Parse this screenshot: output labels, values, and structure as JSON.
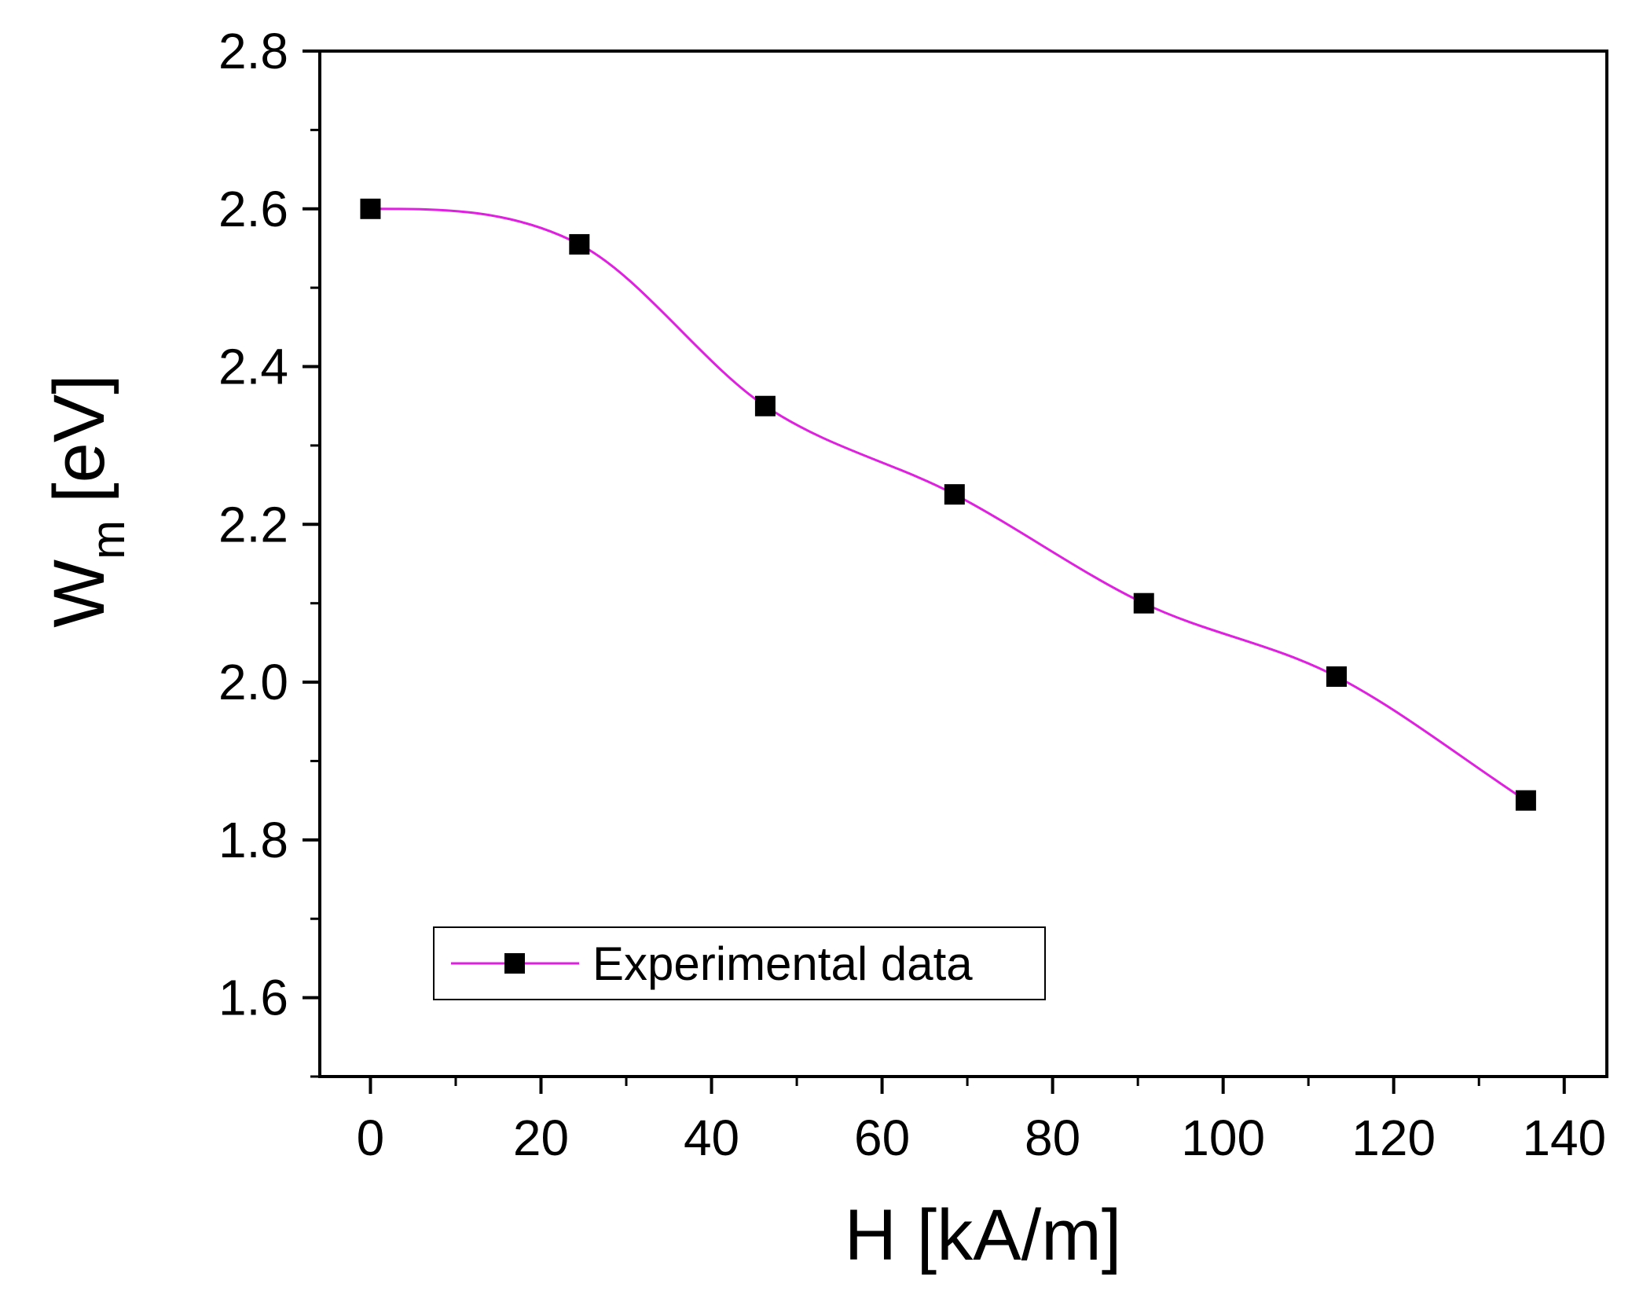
{
  "chart_data": {
    "type": "line",
    "xlabel": "H [kA/m]",
    "ylabel": {
      "main": "W",
      "subscript": "m",
      "unit": "[eV]"
    },
    "xlim": [
      -5.94,
      145
    ],
    "ylim": [
      1.5,
      2.8
    ],
    "xticks": [
      0,
      20,
      40,
      60,
      80,
      100,
      120,
      140
    ],
    "yticks": [
      1.6,
      1.8,
      2.0,
      2.2,
      2.4,
      2.6,
      2.8
    ],
    "x_tick_labels": [
      "0",
      "20",
      "40",
      "60",
      "80",
      "100",
      "120",
      "140"
    ],
    "y_tick_labels": [
      "1.6",
      "1.8",
      "2.0",
      "2.2",
      "2.4",
      "2.6",
      "2.8"
    ],
    "grid": false,
    "legend": "inside-bottom-left",
    "series": [
      {
        "name": "Experimental data",
        "marker": "square",
        "marker_color": "#000000",
        "line_color": "#e020e0",
        "line_style": "smooth",
        "points": [
          {
            "x": 0,
            "y": 2.6
          },
          {
            "x": 24.5,
            "y": 2.555
          },
          {
            "x": 46.3,
            "y": 2.35
          },
          {
            "x": 68.5,
            "y": 2.238
          },
          {
            "x": 90.7,
            "y": 2.1
          },
          {
            "x": 113.3,
            "y": 2.007
          },
          {
            "x": 135.5,
            "y": 1.85
          }
        ]
      }
    ]
  }
}
